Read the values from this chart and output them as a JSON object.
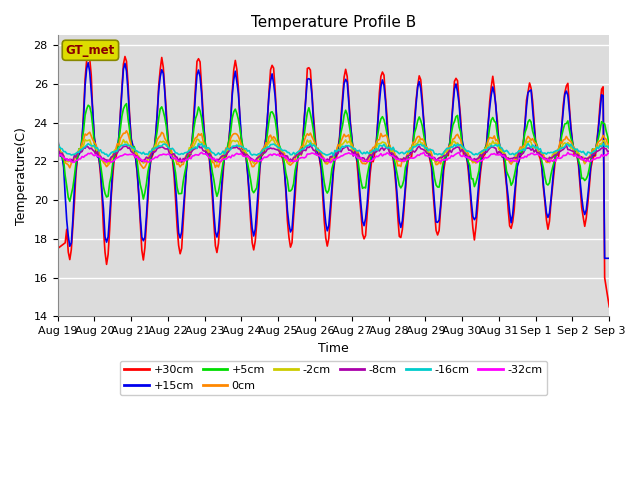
{
  "title": "Temperature Profile B",
  "xlabel": "Time",
  "ylabel": "Temperature(C)",
  "ylim": [
    14,
    28.5
  ],
  "xtick_labels": [
    "Aug 19",
    "Aug 20",
    "Aug 21",
    "Aug 22",
    "Aug 23",
    "Aug 24",
    "Aug 25",
    "Aug 26",
    "Aug 27",
    "Aug 28",
    "Aug 29",
    "Aug 30",
    "Aug 31",
    "Sep 1",
    "Sep 2",
    "Sep 3"
  ],
  "xtick_positions": [
    0,
    24,
    48,
    72,
    96,
    120,
    144,
    168,
    192,
    216,
    240,
    264,
    288,
    312,
    336,
    360
  ],
  "series": [
    {
      "label": "+30cm",
      "color": "#FF0000",
      "lw": 1.2
    },
    {
      "label": "+15cm",
      "color": "#0000EE",
      "lw": 1.2
    },
    {
      "label": "+5cm",
      "color": "#00DD00",
      "lw": 1.2
    },
    {
      "label": "0cm",
      "color": "#FF8800",
      "lw": 1.2
    },
    {
      "label": "-2cm",
      "color": "#CCCC00",
      "lw": 1.2
    },
    {
      "label": "-8cm",
      "color": "#AA00AA",
      "lw": 1.2
    },
    {
      "label": "-16cm",
      "color": "#00CCCC",
      "lw": 1.2
    },
    {
      "label": "-32cm",
      "color": "#FF00FF",
      "lw": 1.2
    }
  ],
  "legend_label": "GT_met",
  "legend_box_facecolor": "#DDDD00",
  "legend_box_edgecolor": "#888800",
  "background_color": "#DCDCDC",
  "grid_color": "white",
  "title_fontsize": 11,
  "label_fontsize": 9,
  "tick_fontsize": 8
}
